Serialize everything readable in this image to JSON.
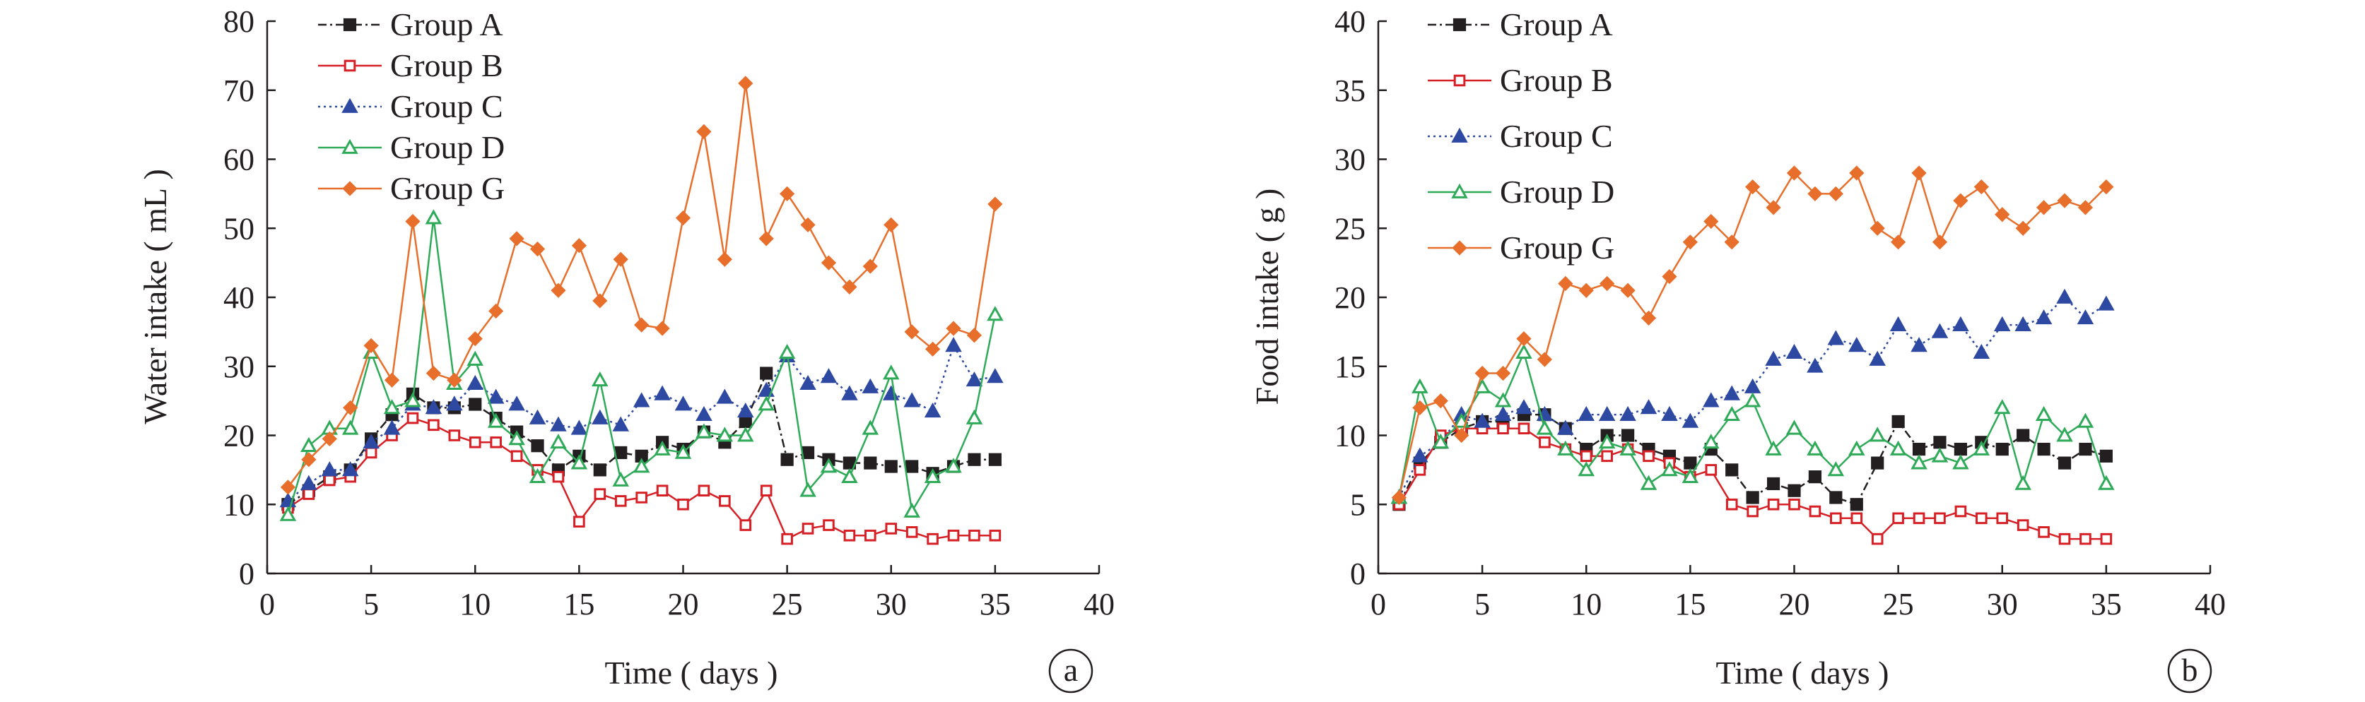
{
  "chart_data": [
    {
      "type": "line",
      "panel_label": "a",
      "xlabel": "Time ( days )",
      "ylabel": "Water intake ( mL )",
      "xlim": [
        0,
        40
      ],
      "ylim": [
        0,
        80
      ],
      "xticks": [
        "0",
        "5",
        "10",
        "15",
        "20",
        "25",
        "30",
        "35",
        "40"
      ],
      "yticks": [
        "0",
        "10",
        "20",
        "30",
        "40",
        "50",
        "60",
        "70",
        "80"
      ],
      "grid": false,
      "legend_position": "top-left",
      "x": [
        1,
        2,
        3,
        4,
        5,
        6,
        7,
        8,
        9,
        10,
        11,
        12,
        13,
        14,
        15,
        16,
        17,
        18,
        19,
        20,
        21,
        22,
        23,
        24,
        25,
        26,
        27,
        28,
        29,
        30,
        31,
        32,
        33,
        34,
        35
      ],
      "series": [
        {
          "name": "Group A",
          "color": "#231f20",
          "marker": "square-filled",
          "line": "dash-dot",
          "values": [
            10,
            12,
            14,
            15,
            19.5,
            23,
            26,
            24,
            24,
            24.5,
            22.5,
            20.5,
            18.5,
            15,
            17,
            15,
            17.5,
            17,
            19,
            18,
            20.5,
            19,
            22,
            29,
            16.5,
            17.5,
            16.5,
            16,
            16,
            15.5,
            15.5,
            14.5,
            15.5,
            16.5,
            16.5
          ]
        },
        {
          "name": "Group B",
          "color": "#d71f26",
          "marker": "square-open",
          "line": "solid",
          "values": [
            9.5,
            11.5,
            13.5,
            14,
            17.5,
            20,
            22.5,
            21.5,
            20,
            19,
            19,
            17,
            15,
            14,
            7.5,
            11.5,
            10.5,
            11,
            12,
            10,
            12,
            10.5,
            7,
            12,
            5,
            6.5,
            7,
            5.5,
            5.5,
            6.5,
            6,
            5,
            5.5,
            5.5,
            5.5
          ]
        },
        {
          "name": "Group C",
          "color": "#2e49a2",
          "marker": "triangle-filled",
          "line": "dotted",
          "values": [
            10.5,
            13,
            15,
            15,
            19,
            21,
            24.5,
            24,
            24.5,
            27.5,
            25.5,
            24.5,
            22.5,
            21.5,
            21,
            22.5,
            21.5,
            25,
            26,
            24.5,
            23,
            25.5,
            23.5,
            26.5,
            31.5,
            27.5,
            28.5,
            26,
            27,
            26,
            25,
            23.5,
            33,
            28,
            28.5
          ]
        },
        {
          "name": "Group D",
          "color": "#2faa58",
          "marker": "triangle-open",
          "line": "solid",
          "values": [
            8.5,
            18.5,
            21,
            21,
            32,
            24,
            25,
            51.5,
            27.5,
            31,
            22,
            19.5,
            14,
            19,
            16,
            28,
            13.5,
            15.5,
            18,
            17.5,
            20.5,
            20,
            20,
            24.5,
            32,
            12,
            15.5,
            14,
            21,
            29,
            9,
            14,
            15.5,
            22.5,
            37.5
          ]
        },
        {
          "name": "Group G",
          "color": "#e76f2b",
          "marker": "diamond-filled",
          "line": "solid",
          "values": [
            12.5,
            16.5,
            19.5,
            24,
            33,
            28,
            51,
            29,
            28,
            34,
            38,
            48.5,
            47,
            41,
            47.5,
            39.5,
            45.5,
            36,
            35.5,
            51.5,
            64,
            45.5,
            71,
            48.5,
            55,
            50.5,
            45,
            41.5,
            44.5,
            50.5,
            35,
            32.5,
            35.5,
            34.5,
            53.5
          ]
        }
      ]
    },
    {
      "type": "line",
      "panel_label": "b",
      "xlabel": "Time ( days )",
      "ylabel": "Food intake ( g )",
      "xlim": [
        0,
        40
      ],
      "ylim": [
        0,
        40
      ],
      "xticks": [
        "0",
        "5",
        "10",
        "15",
        "20",
        "25",
        "30",
        "35",
        "40"
      ],
      "yticks": [
        "0",
        "5",
        "10",
        "15",
        "20",
        "25",
        "30",
        "35",
        "40"
      ],
      "grid": false,
      "legend_position": "top-left",
      "x": [
        1,
        2,
        3,
        4,
        5,
        6,
        7,
        8,
        9,
        10,
        11,
        12,
        13,
        14,
        15,
        16,
        17,
        18,
        19,
        20,
        21,
        22,
        23,
        24,
        25,
        26,
        27,
        28,
        29,
        30,
        31,
        32,
        33,
        34,
        35
      ],
      "series": [
        {
          "name": "Group A",
          "color": "#231f20",
          "marker": "square-filled",
          "line": "dash-dot",
          "values": [
            5,
            8,
            9.5,
            10.5,
            11,
            11,
            11.5,
            11.5,
            10.5,
            9,
            10,
            10,
            9,
            8.5,
            8,
            9,
            7.5,
            5.5,
            6.5,
            6,
            7,
            5.5,
            5,
            8,
            11,
            9,
            9.5,
            9,
            9.5,
            9,
            10,
            9,
            8,
            9,
            8.5
          ]
        },
        {
          "name": "Group B",
          "color": "#d71f26",
          "marker": "square-open",
          "line": "solid",
          "values": [
            5,
            7.5,
            10,
            10.5,
            10.5,
            10.5,
            10.5,
            9.5,
            9,
            8.5,
            8.5,
            9,
            8.5,
            8,
            7,
            7.5,
            5,
            4.5,
            5,
            5,
            4.5,
            4,
            4,
            2.5,
            4,
            4,
            4,
            4.5,
            4,
            4,
            3.5,
            3,
            2.5,
            2.5,
            2.5
          ]
        },
        {
          "name": "Group C",
          "color": "#2e49a2",
          "marker": "triangle-filled",
          "line": "dotted",
          "values": [
            5.5,
            8.5,
            9.5,
            11.5,
            11,
            11.5,
            12,
            11.5,
            10.5,
            11.5,
            11.5,
            11.5,
            12,
            11.5,
            11,
            12.5,
            13,
            13.5,
            15.5,
            16,
            15,
            17,
            16.5,
            15.5,
            18,
            16.5,
            17.5,
            18,
            16,
            18,
            18,
            18.5,
            20,
            18.5,
            19.5
          ]
        },
        {
          "name": "Group D",
          "color": "#2faa58",
          "marker": "triangle-open",
          "line": "solid",
          "values": [
            5.5,
            13.5,
            9.5,
            11,
            13.5,
            12.5,
            16,
            10.5,
            9,
            7.5,
            9.5,
            9,
            6.5,
            7.5,
            7,
            9.5,
            11.5,
            12.5,
            9,
            10.5,
            9,
            7.5,
            9,
            10,
            9,
            8,
            8.5,
            8,
            9,
            12,
            6.5,
            11.5,
            10,
            11,
            6.5
          ]
        },
        {
          "name": "Group G",
          "color": "#e76f2b",
          "marker": "diamond-filled",
          "line": "solid",
          "values": [
            5.5,
            12,
            12.5,
            10,
            14.5,
            14.5,
            17,
            15.5,
            21,
            20.5,
            21,
            20.5,
            18.5,
            21.5,
            24,
            25.5,
            24,
            28,
            26.5,
            29,
            27.5,
            27.5,
            29,
            25,
            24,
            29,
            24,
            27,
            28,
            26,
            25,
            26.5,
            27,
            26.5,
            28
          ]
        }
      ]
    }
  ]
}
